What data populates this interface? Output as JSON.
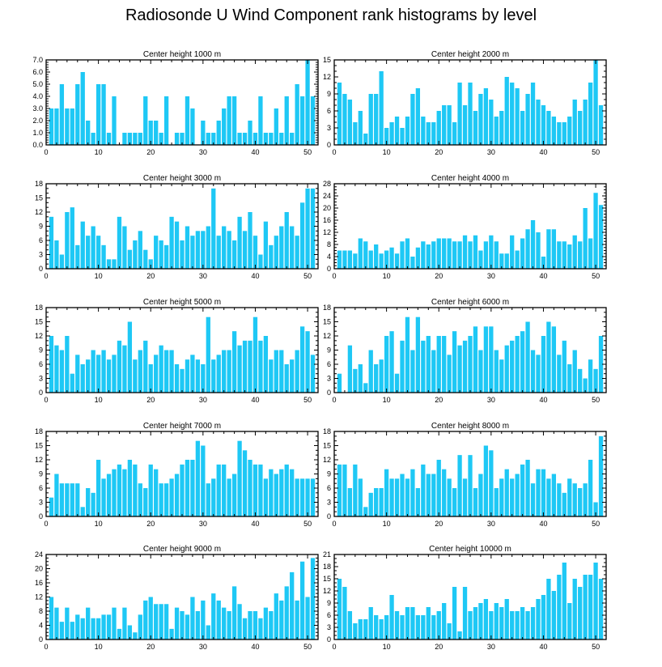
{
  "title": "Radiosonde U Wind Component rank histograms by level",
  "colors": {
    "bar": "#1ec8f5",
    "axis": "#000000"
  },
  "chart_data": [
    {
      "type": "bar",
      "title": "Center height 1000 m",
      "xlim": [
        0,
        52
      ],
      "ylim": [
        0,
        7
      ],
      "xticks": [
        0,
        10,
        20,
        30,
        40,
        50
      ],
      "yticks": [
        0,
        1,
        2,
        3,
        4,
        5,
        6,
        7
      ],
      "ytick_labels": [
        "0.0",
        "1.0",
        "2.0",
        "3.0",
        "4.0",
        "5.0",
        "6.0",
        "7.0"
      ],
      "x": [
        1,
        2,
        3,
        4,
        5,
        6,
        7,
        8,
        9,
        10,
        11,
        12,
        13,
        14,
        15,
        16,
        17,
        18,
        19,
        20,
        21,
        22,
        23,
        24,
        25,
        26,
        27,
        28,
        29,
        30,
        31,
        32,
        33,
        34,
        35,
        36,
        37,
        38,
        39,
        40,
        41,
        42,
        43,
        44,
        45,
        46,
        47,
        48,
        49,
        50,
        51
      ],
      "values": [
        3,
        3,
        5,
        3,
        3,
        5,
        6,
        2,
        1,
        5,
        5,
        1,
        4,
        0,
        1,
        1,
        1,
        1,
        4,
        2,
        2,
        1,
        4,
        0,
        1,
        1,
        4,
        3,
        0,
        2,
        1,
        1,
        2,
        3,
        4,
        4,
        1,
        1,
        2,
        1,
        4,
        1,
        1,
        3,
        1,
        4,
        1,
        5,
        4,
        7,
        4
      ]
    },
    {
      "type": "bar",
      "title": "Center height 2000 m",
      "xlim": [
        0,
        52
      ],
      "ylim": [
        0,
        15
      ],
      "xticks": [
        0,
        10,
        20,
        30,
        40,
        50
      ],
      "yticks": [
        0,
        3,
        6,
        9,
        12,
        15
      ],
      "ytick_labels": [
        "0",
        "3",
        "6",
        "9",
        "12",
        "15"
      ],
      "x": [
        1,
        2,
        3,
        4,
        5,
        6,
        7,
        8,
        9,
        10,
        11,
        12,
        13,
        14,
        15,
        16,
        17,
        18,
        19,
        20,
        21,
        22,
        23,
        24,
        25,
        26,
        27,
        28,
        29,
        30,
        31,
        32,
        33,
        34,
        35,
        36,
        37,
        38,
        39,
        40,
        41,
        42,
        43,
        44,
        45,
        46,
        47,
        48,
        49,
        50,
        51
      ],
      "values": [
        11,
        9,
        8,
        4,
        6,
        2,
        9,
        9,
        13,
        3,
        4,
        5,
        3,
        5,
        9,
        10,
        5,
        4,
        4,
        6,
        7,
        7,
        4,
        11,
        7,
        11,
        6,
        9,
        10,
        8,
        5,
        6,
        12,
        11,
        10,
        6,
        9,
        11,
        8,
        7,
        6,
        5,
        4,
        4,
        5,
        8,
        6,
        8,
        11,
        15,
        7
      ]
    },
    {
      "type": "bar",
      "title": "Center height 3000 m",
      "xlim": [
        0,
        52
      ],
      "ylim": [
        0,
        18
      ],
      "xticks": [
        0,
        10,
        20,
        30,
        40,
        50
      ],
      "yticks": [
        0,
        3,
        6,
        9,
        12,
        15,
        18
      ],
      "ytick_labels": [
        "0",
        "3",
        "6",
        "9",
        "12",
        "15",
        "18"
      ],
      "x": [
        1,
        2,
        3,
        4,
        5,
        6,
        7,
        8,
        9,
        10,
        11,
        12,
        13,
        14,
        15,
        16,
        17,
        18,
        19,
        20,
        21,
        22,
        23,
        24,
        25,
        26,
        27,
        28,
        29,
        30,
        31,
        32,
        33,
        34,
        35,
        36,
        37,
        38,
        39,
        40,
        41,
        42,
        43,
        44,
        45,
        46,
        47,
        48,
        49,
        50,
        51
      ],
      "values": [
        11,
        6,
        3,
        12,
        13,
        5,
        10,
        7,
        9,
        7,
        5,
        2,
        2,
        11,
        9,
        4,
        6,
        8,
        4,
        2,
        7,
        6,
        5,
        11,
        10,
        6,
        9,
        7,
        8,
        8,
        9,
        17,
        7,
        9,
        8,
        6,
        11,
        8,
        12,
        7,
        3,
        10,
        5,
        7,
        9,
        12,
        9,
        7,
        14,
        17,
        17
      ]
    },
    {
      "type": "bar",
      "title": "Center height 4000 m",
      "xlim": [
        0,
        52
      ],
      "ylim": [
        0,
        28
      ],
      "xticks": [
        0,
        10,
        20,
        30,
        40,
        50
      ],
      "yticks": [
        0,
        4,
        8,
        12,
        16,
        20,
        24,
        28
      ],
      "ytick_labels": [
        "0",
        "4",
        "8",
        "12",
        "16",
        "20",
        "24",
        "28"
      ],
      "x": [
        1,
        2,
        3,
        4,
        5,
        6,
        7,
        8,
        9,
        10,
        11,
        12,
        13,
        14,
        15,
        16,
        17,
        18,
        19,
        20,
        21,
        22,
        23,
        24,
        25,
        26,
        27,
        28,
        29,
        30,
        31,
        32,
        33,
        34,
        35,
        36,
        37,
        38,
        39,
        40,
        41,
        42,
        43,
        44,
        45,
        46,
        47,
        48,
        49,
        50,
        51
      ],
      "values": [
        6,
        6,
        6,
        5,
        10,
        9,
        6,
        8,
        5,
        6,
        7,
        5,
        9,
        10,
        4,
        7,
        9,
        8,
        9,
        10,
        10,
        10,
        9,
        9,
        11,
        9,
        11,
        6,
        9,
        11,
        9,
        5,
        5,
        11,
        6,
        10,
        13,
        16,
        12,
        4,
        13,
        13,
        9,
        9,
        8,
        11,
        9,
        20,
        10,
        25,
        21
      ]
    },
    {
      "type": "bar",
      "title": "Center height 5000 m",
      "xlim": [
        0,
        52
      ],
      "ylim": [
        0,
        18
      ],
      "xticks": [
        0,
        10,
        20,
        30,
        40,
        50
      ],
      "yticks": [
        0,
        3,
        6,
        9,
        12,
        15,
        18
      ],
      "ytick_labels": [
        "0",
        "3",
        "6",
        "9",
        "12",
        "15",
        "18"
      ],
      "x": [
        1,
        2,
        3,
        4,
        5,
        6,
        7,
        8,
        9,
        10,
        11,
        12,
        13,
        14,
        15,
        16,
        17,
        18,
        19,
        20,
        21,
        22,
        23,
        24,
        25,
        26,
        27,
        28,
        29,
        30,
        31,
        32,
        33,
        34,
        35,
        36,
        37,
        38,
        39,
        40,
        41,
        42,
        43,
        44,
        45,
        46,
        47,
        48,
        49,
        50,
        51
      ],
      "values": [
        12,
        10,
        9,
        12,
        4,
        8,
        6,
        7,
        9,
        8,
        9,
        7,
        8,
        11,
        10,
        15,
        7,
        9,
        11,
        6,
        8,
        10,
        9,
        9,
        6,
        5,
        7,
        8,
        7,
        6,
        16,
        7,
        8,
        9,
        9,
        13,
        10,
        11,
        11,
        16,
        11,
        12,
        7,
        9,
        9,
        6,
        7,
        9,
        14,
        13,
        8
      ]
    },
    {
      "type": "bar",
      "title": "Center height 6000 m",
      "xlim": [
        0,
        52
      ],
      "ylim": [
        0,
        18
      ],
      "xticks": [
        0,
        10,
        20,
        30,
        40,
        50
      ],
      "yticks": [
        0,
        3,
        6,
        9,
        12,
        15,
        18
      ],
      "ytick_labels": [
        "0",
        "3",
        "6",
        "9",
        "12",
        "15",
        "18"
      ],
      "x": [
        1,
        2,
        3,
        4,
        5,
        6,
        7,
        8,
        9,
        10,
        11,
        12,
        13,
        14,
        15,
        16,
        17,
        18,
        19,
        20,
        21,
        22,
        23,
        24,
        25,
        26,
        27,
        28,
        29,
        30,
        31,
        32,
        33,
        34,
        35,
        36,
        37,
        38,
        39,
        40,
        41,
        42,
        43,
        44,
        45,
        46,
        47,
        48,
        49,
        50,
        51
      ],
      "values": [
        4,
        0,
        10,
        5,
        6,
        2,
        9,
        6,
        7,
        12,
        13,
        4,
        11,
        16,
        9,
        16,
        11,
        12,
        9,
        12,
        12,
        8,
        13,
        10,
        11,
        12,
        14,
        9,
        14,
        14,
        9,
        7,
        10,
        11,
        12,
        13,
        15,
        9,
        8,
        12,
        15,
        14,
        8,
        11,
        6,
        9,
        5,
        3,
        7,
        5,
        12
      ]
    },
    {
      "type": "bar",
      "title": "Center height 7000 m",
      "xlim": [
        0,
        52
      ],
      "ylim": [
        0,
        18
      ],
      "xticks": [
        0,
        10,
        20,
        30,
        40,
        50
      ],
      "yticks": [
        0,
        3,
        6,
        9,
        12,
        15,
        18
      ],
      "ytick_labels": [
        "0",
        "3",
        "6",
        "9",
        "12",
        "15",
        "18"
      ],
      "x": [
        1,
        2,
        3,
        4,
        5,
        6,
        7,
        8,
        9,
        10,
        11,
        12,
        13,
        14,
        15,
        16,
        17,
        18,
        19,
        20,
        21,
        22,
        23,
        24,
        25,
        26,
        27,
        28,
        29,
        30,
        31,
        32,
        33,
        34,
        35,
        36,
        37,
        38,
        39,
        40,
        41,
        42,
        43,
        44,
        45,
        46,
        47,
        48,
        49,
        50,
        51
      ],
      "values": [
        4,
        9,
        7,
        7,
        7,
        7,
        2,
        6,
        5,
        12,
        8,
        9,
        10,
        11,
        10,
        12,
        11,
        7,
        6,
        11,
        10,
        7,
        7,
        8,
        9,
        11,
        12,
        12,
        16,
        15,
        7,
        8,
        11,
        11,
        8,
        9,
        16,
        14,
        12,
        11,
        11,
        8,
        10,
        9,
        10,
        11,
        10,
        8,
        8,
        8,
        8
      ]
    },
    {
      "type": "bar",
      "title": "Center height 8000 m",
      "xlim": [
        0,
        52
      ],
      "ylim": [
        0,
        18
      ],
      "xticks": [
        0,
        10,
        20,
        30,
        40,
        50
      ],
      "yticks": [
        0,
        3,
        6,
        9,
        12,
        15,
        18
      ],
      "ytick_labels": [
        "0",
        "3",
        "6",
        "9",
        "12",
        "15",
        "18"
      ],
      "x": [
        1,
        2,
        3,
        4,
        5,
        6,
        7,
        8,
        9,
        10,
        11,
        12,
        13,
        14,
        15,
        16,
        17,
        18,
        19,
        20,
        21,
        22,
        23,
        24,
        25,
        26,
        27,
        28,
        29,
        30,
        31,
        32,
        33,
        34,
        35,
        36,
        37,
        38,
        39,
        40,
        41,
        42,
        43,
        44,
        45,
        46,
        47,
        48,
        49,
        50,
        51
      ],
      "values": [
        11,
        11,
        6,
        11,
        8,
        2,
        5,
        6,
        6,
        10,
        8,
        8,
        9,
        8,
        10,
        6,
        11,
        9,
        9,
        12,
        10,
        8,
        6,
        13,
        8,
        13,
        6,
        9,
        15,
        14,
        6,
        8,
        10,
        8,
        9,
        11,
        12,
        7,
        10,
        10,
        8,
        9,
        7,
        5,
        8,
        7,
        6,
        7,
        12,
        3,
        17
      ]
    },
    {
      "type": "bar",
      "title": "Center height 9000 m",
      "xlim": [
        0,
        52
      ],
      "ylim": [
        0,
        24
      ],
      "xticks": [
        0,
        10,
        20,
        30,
        40,
        50
      ],
      "yticks": [
        0,
        4,
        8,
        12,
        16,
        20,
        24
      ],
      "ytick_labels": [
        "0",
        "4",
        "8",
        "12",
        "16",
        "20",
        "24"
      ],
      "x": [
        1,
        2,
        3,
        4,
        5,
        6,
        7,
        8,
        9,
        10,
        11,
        12,
        13,
        14,
        15,
        16,
        17,
        18,
        19,
        20,
        21,
        22,
        23,
        24,
        25,
        26,
        27,
        28,
        29,
        30,
        31,
        32,
        33,
        34,
        35,
        36,
        37,
        38,
        39,
        40,
        41,
        42,
        43,
        44,
        45,
        46,
        47,
        48,
        49,
        50,
        51
      ],
      "values": [
        12,
        9,
        5,
        9,
        5,
        7,
        6,
        9,
        6,
        6,
        7,
        7,
        9,
        3,
        9,
        4,
        2,
        7,
        11,
        12,
        10,
        10,
        10,
        3,
        9,
        8,
        7,
        12,
        8,
        11,
        4,
        13,
        11,
        9,
        8,
        15,
        10,
        6,
        8,
        8,
        6,
        9,
        8,
        13,
        11,
        15,
        19,
        11,
        22,
        12,
        23
      ]
    },
    {
      "type": "bar",
      "title": "Center height 10000 m",
      "xlim": [
        0,
        52
      ],
      "ylim": [
        0,
        21
      ],
      "xticks": [
        0,
        10,
        20,
        30,
        40,
        50
      ],
      "yticks": [
        0,
        3,
        6,
        9,
        12,
        15,
        18,
        21
      ],
      "ytick_labels": [
        "0",
        "3",
        "6",
        "9",
        "12",
        "15",
        "18",
        "21"
      ],
      "x": [
        1,
        2,
        3,
        4,
        5,
        6,
        7,
        8,
        9,
        10,
        11,
        12,
        13,
        14,
        15,
        16,
        17,
        18,
        19,
        20,
        21,
        22,
        23,
        24,
        25,
        26,
        27,
        28,
        29,
        30,
        31,
        32,
        33,
        34,
        35,
        36,
        37,
        38,
        39,
        40,
        41,
        42,
        43,
        44,
        45,
        46,
        47,
        48,
        49,
        50,
        51
      ],
      "values": [
        15,
        13,
        7,
        4,
        5,
        5,
        8,
        6,
        5,
        6,
        11,
        7,
        6,
        8,
        8,
        6,
        6,
        8,
        6,
        7,
        9,
        4,
        13,
        2,
        13,
        7,
        8,
        9,
        10,
        7,
        9,
        8,
        10,
        7,
        7,
        8,
        7,
        8,
        10,
        11,
        15,
        12,
        16,
        19,
        9,
        15,
        13,
        16,
        16,
        19,
        15
      ]
    }
  ]
}
